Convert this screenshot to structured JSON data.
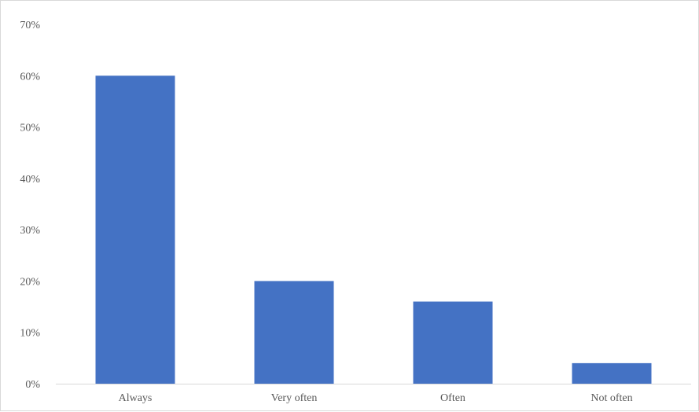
{
  "chart_data": {
    "type": "bar",
    "title": "",
    "xlabel": "",
    "ylabel": "",
    "categories": [
      "Always",
      "Very often",
      "Often",
      "Not often"
    ],
    "values": [
      60,
      20,
      16,
      4
    ],
    "value_unit": "%",
    "ylim": [
      0,
      70
    ],
    "yticks": [
      0,
      10,
      20,
      30,
      40,
      50,
      60,
      70
    ],
    "ytick_labels": [
      "0%",
      "10%",
      "20%",
      "30%",
      "40%",
      "50%",
      "60%",
      "70%"
    ],
    "grid": false,
    "legend": "none",
    "bar_color": "#4472C4"
  }
}
